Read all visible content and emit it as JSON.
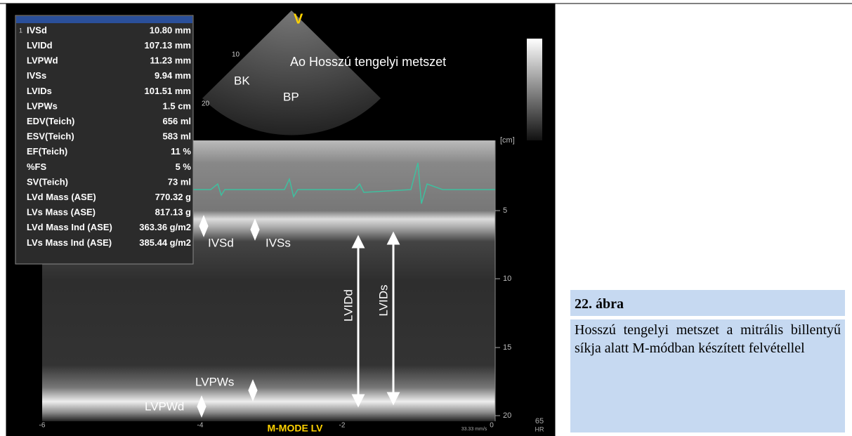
{
  "image": {
    "measurements": {
      "index": "1",
      "rows": [
        [
          "IVSd",
          "10.80 mm"
        ],
        [
          "LVIDd",
          "107.13 mm"
        ],
        [
          "LVPWd",
          "11.23 mm"
        ],
        [
          "IVSs",
          "9.94 mm"
        ],
        [
          "LVIDs",
          "101.51 mm"
        ],
        [
          "LVPWs",
          "1.5 cm"
        ],
        [
          "EDV(Teich)",
          "656 ml"
        ],
        [
          "ESV(Teich)",
          "583 ml"
        ],
        [
          "EF(Teich)",
          "11 %"
        ],
        [
          "%FS",
          "5 %"
        ],
        [
          "SV(Teich)",
          "73 ml"
        ],
        [
          "LVd Mass (ASE)",
          "770.32 g"
        ],
        [
          "LVs Mass (ASE)",
          "817.13 g"
        ],
        [
          "LVd Mass Ind (ASE)",
          "363.36 g/m2"
        ],
        [
          "LVs Mass Ind (ASE)",
          "385.44 g/m2"
        ]
      ]
    },
    "sector_labels": {
      "marker": "V",
      "view": "Ao Hosszú tengelyi metszet",
      "bk": "BK",
      "bp": "BP",
      "depth_10": "10",
      "depth_20": "20"
    },
    "depth_unit": "[cm]",
    "depth_ticks": [
      "5",
      "10",
      "15",
      "20"
    ],
    "annotations": {
      "ivsd": "IVSd",
      "ivss": "IVSs",
      "lvidd": "LVIDd",
      "lvids": "LVIDs",
      "lvpws": "LVPWs",
      "lvpwd": "LVPWd"
    },
    "time_ticks": [
      "-6",
      "-4",
      "-2",
      "0"
    ],
    "mode": "M-MODE LV",
    "sweep": "33.33 mm/s",
    "hr_value": "65",
    "hr_label": "HR"
  },
  "caption": {
    "title": "22. ábra",
    "text": "Hosszú tengelyi metszet a mitrális billentyű síkja alatt M-módban készített felvétellel"
  }
}
